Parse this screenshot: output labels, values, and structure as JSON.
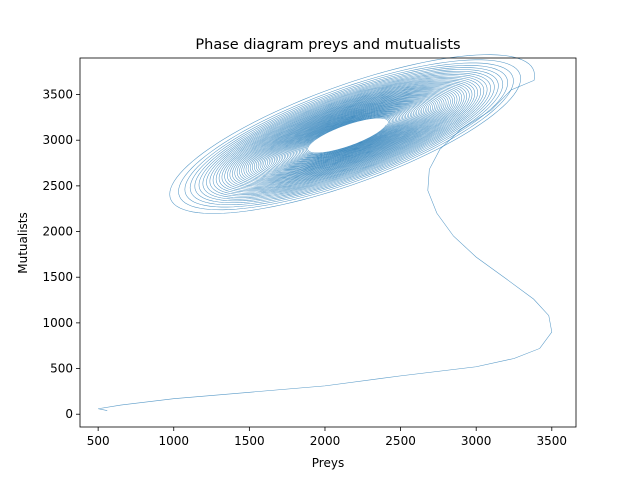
{
  "chart_data": {
    "type": "line",
    "title": "Phase diagram preys and mutualists",
    "xlabel": "Preys",
    "ylabel": "Mutualists",
    "xlim": [
      380,
      3660
    ],
    "ylim": [
      -140,
      3900
    ],
    "xticks": [
      500,
      1000,
      1500,
      2000,
      2500,
      3000,
      3500
    ],
    "yticks": [
      0,
      500,
      1000,
      1500,
      2000,
      2500,
      3000,
      3500
    ],
    "grid": false,
    "legend": "none",
    "color": "#1f77b4",
    "series": [
      {
        "trajectory": [
          [
            560,
            40
          ],
          [
            500,
            60
          ],
          [
            650,
            100
          ],
          [
            1000,
            170
          ],
          [
            1500,
            240
          ],
          [
            2000,
            310
          ],
          [
            2500,
            420
          ],
          [
            3000,
            520
          ],
          [
            3250,
            610
          ],
          [
            3420,
            720
          ],
          [
            3500,
            900
          ],
          [
            3480,
            1080
          ],
          [
            3380,
            1260
          ],
          [
            3200,
            1480
          ],
          [
            3000,
            1720
          ],
          [
            2850,
            1950
          ],
          [
            2740,
            2200
          ],
          [
            2680,
            2450
          ],
          [
            2690,
            2680
          ],
          [
            2760,
            2900
          ],
          [
            2900,
            3120
          ],
          [
            3100,
            3330
          ],
          [
            3230,
            3550
          ]
        ],
        "orbit_center": [
          2150,
          3050
        ],
        "orbit_radii_outer": [
          1250,
          600
        ],
        "orbit_radii_inner": [
          260,
          120
        ],
        "orbit_tilt_per_x": 0.55
      }
    ]
  }
}
